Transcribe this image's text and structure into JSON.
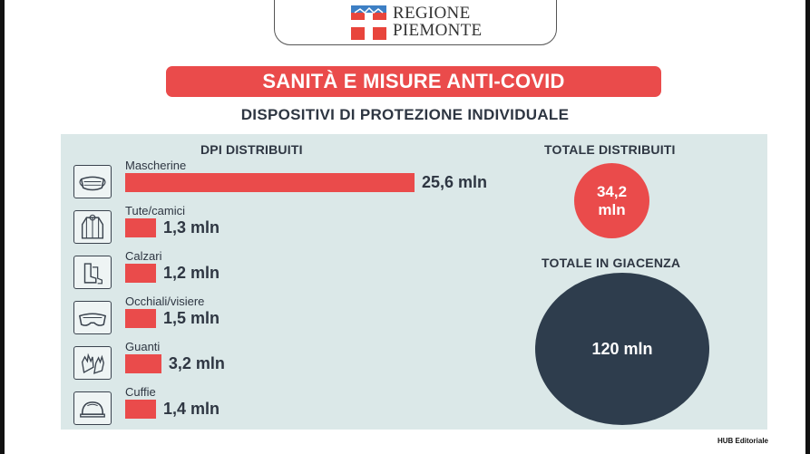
{
  "header": {
    "logo_line1": "REGIONE",
    "logo_line2": "PIEMONTE",
    "banner_title": "SANITÀ E MISURE ANTI-COVID",
    "subtitle": "DISPOSITIVI DI PROTEZIONE INDIVIDUALE"
  },
  "colors": {
    "accent": "#ea4b4b",
    "dark": "#2e3d4d",
    "panel": "#dbe8e8",
    "text": "#2e3642"
  },
  "chart_data": {
    "type": "bar",
    "orientation": "horizontal",
    "title": "DPI DISTRIBUITI",
    "unit": "mln",
    "categories": [
      "Mascherine",
      "Tute/camici",
      "Calzari",
      "Occhiali/visiere",
      "Guanti",
      "Cuffie"
    ],
    "values": [
      25.6,
      1.3,
      1.2,
      1.5,
      3.2,
      1.4
    ],
    "value_labels": [
      "25,6 mln",
      "1,3 mln",
      "1,2 mln",
      "1,5 mln",
      "3,2 mln",
      "1,4 mln"
    ],
    "icons": [
      "face-mask-icon",
      "protective-gown-icon",
      "shoe-covers-icon",
      "goggles-icon",
      "gloves-icon",
      "cap-icon"
    ]
  },
  "totals": {
    "distributed_label": "TOTALE DISTRIBUITI",
    "distributed_value": "34,2 mln",
    "stock_label": "TOTALE IN GIACENZA",
    "stock_value": "120 mln"
  },
  "footer": {
    "credit": "HUB Editoriale"
  }
}
